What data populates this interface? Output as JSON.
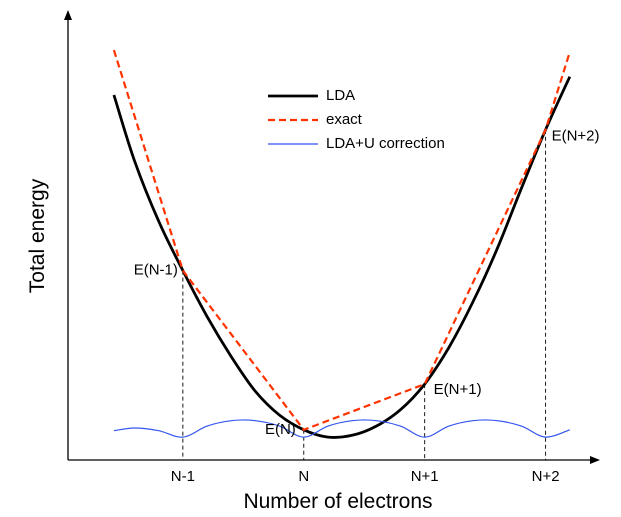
{
  "chart_data": {
    "type": "line",
    "title": "",
    "xlabel": "Number of electrons",
    "ylabel": "Total energy",
    "grid": false,
    "legend_position": "top-center",
    "x_ticks": [
      {
        "x": -1,
        "label": "N-1"
      },
      {
        "x": 0,
        "label": "N"
      },
      {
        "x": 1,
        "label": "N+1"
      },
      {
        "x": 2,
        "label": "N+2"
      }
    ],
    "series": [
      {
        "name": "LDA",
        "color": "#000000",
        "style": "solid",
        "points": [
          [
            -1.57,
            3.74
          ],
          [
            -1.4,
            3.02
          ],
          [
            -1.2,
            2.36
          ],
          [
            -1.0,
            1.82
          ],
          [
            -0.8,
            1.32
          ],
          [
            -0.6,
            0.88
          ],
          [
            -0.4,
            0.5
          ],
          [
            -0.2,
            0.24
          ],
          [
            0.0,
            0.08
          ],
          [
            0.2,
            0.0
          ],
          [
            0.4,
            0.02
          ],
          [
            0.6,
            0.12
          ],
          [
            0.8,
            0.3
          ],
          [
            1.0,
            0.58
          ],
          [
            1.2,
            0.98
          ],
          [
            1.4,
            1.48
          ],
          [
            1.6,
            2.06
          ],
          [
            1.8,
            2.72
          ],
          [
            2.0,
            3.36
          ],
          [
            2.2,
            3.94
          ]
        ]
      },
      {
        "name": "exact",
        "color": "#ff3300",
        "style": "dashed",
        "points": [
          [
            -1.57,
            4.23
          ],
          [
            -1.0,
            1.82
          ],
          [
            0.0,
            0.08
          ],
          [
            1.0,
            0.58
          ],
          [
            2.0,
            3.36
          ],
          [
            2.2,
            4.21
          ]
        ]
      },
      {
        "name": "LDA+U correction",
        "color": "#3355ee",
        "style": "solid",
        "points": [
          [
            -1.57,
            0.07
          ],
          [
            -1.4,
            0.1
          ],
          [
            -1.2,
            0.07
          ],
          [
            -1.0,
            0.0
          ],
          [
            -0.8,
            0.12
          ],
          [
            -0.6,
            0.18
          ],
          [
            -0.4,
            0.18
          ],
          [
            -0.2,
            0.12
          ],
          [
            0.0,
            0.0
          ],
          [
            0.2,
            0.12
          ],
          [
            0.4,
            0.18
          ],
          [
            0.6,
            0.18
          ],
          [
            0.8,
            0.12
          ],
          [
            1.0,
            0.0
          ],
          [
            1.2,
            0.12
          ],
          [
            1.4,
            0.18
          ],
          [
            1.6,
            0.18
          ],
          [
            1.8,
            0.12
          ],
          [
            2.0,
            0.0
          ],
          [
            2.2,
            0.08
          ]
        ]
      }
    ],
    "point_labels": [
      {
        "x": -1,
        "y": 1.82,
        "label": "E(N-1)"
      },
      {
        "x": 0,
        "y": 0.08,
        "label": "E(N)"
      },
      {
        "x": 1,
        "y": 0.58,
        "label": "E(N+1)"
      },
      {
        "x": 2,
        "y": 3.36,
        "label": "E(N+2)"
      }
    ],
    "xlim": [
      -1.95,
      2.45
    ],
    "ylim": [
      -0.25,
      4.45
    ]
  }
}
